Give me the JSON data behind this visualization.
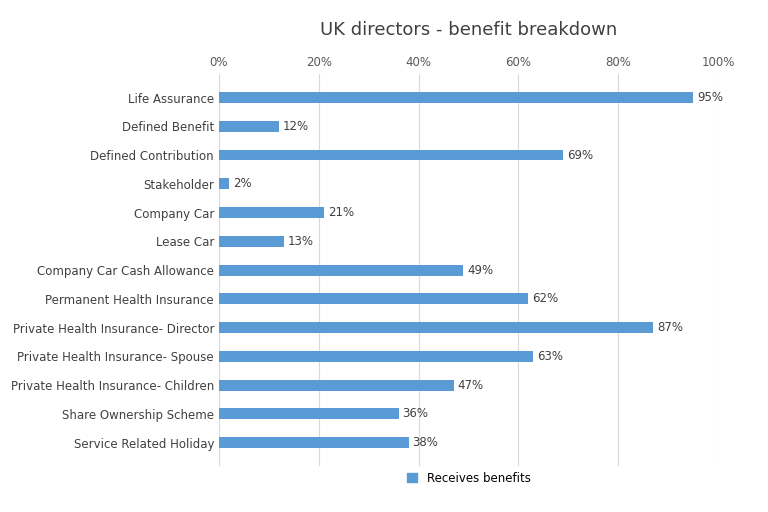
{
  "title": "UK directors - benefit breakdown",
  "categories": [
    "Life Assurance",
    "Defined Benefit",
    "Defined Contribution",
    "Stakeholder",
    "Company Car",
    "Lease Car",
    "Company Car Cash Allowance",
    "Permanent Health Insurance",
    "Private Health Insurance- Director",
    "Private Health Insurance- Spouse",
    "Private Health Insurance- Children",
    "Share Ownership Scheme",
    "Service Related Holiday"
  ],
  "values": [
    95,
    12,
    69,
    2,
    21,
    13,
    49,
    62,
    87,
    63,
    47,
    36,
    38
  ],
  "bar_color": "#5B9BD5",
  "background_color": "#FFFFFF",
  "legend_label": "Receives benefits",
  "xlim": [
    0,
    100
  ],
  "xtick_values": [
    0,
    20,
    40,
    60,
    80,
    100
  ],
  "xtick_labels": [
    "0%",
    "20%",
    "40%",
    "60%",
    "80%",
    "100%"
  ],
  "title_fontsize": 13,
  "label_fontsize": 8.5,
  "tick_fontsize": 8.5,
  "value_fontsize": 8.5
}
